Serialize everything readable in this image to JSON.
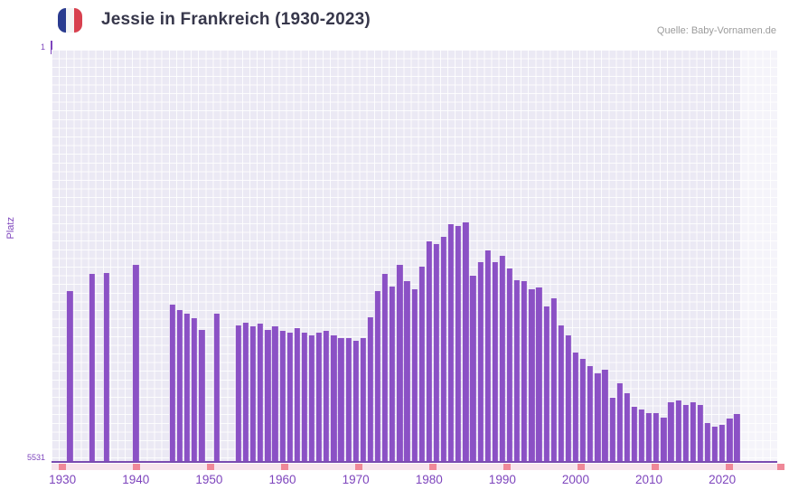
{
  "header": {
    "title": "Jessie in Frankreich (1930-2023)",
    "source": "Quelle: Baby-Vornamen.de"
  },
  "colors": {
    "bar": "#8b51c5",
    "axis_text": "#7e45bd",
    "plot_bg": "#ebe9f4",
    "axis_line": "#7a4cb0",
    "strip_bg": "#f7e4ec",
    "strip_tick": "#ef8898",
    "title_text": "#37374b",
    "source_text": "#9b9b9b",
    "flag_blue": "#2a3b8f",
    "flag_white": "#f5f5f5",
    "flag_red": "#d8414f"
  },
  "chart_data": {
    "type": "bar",
    "title": "Jessie in Frankreich (1930-2023)",
    "xlabel": "",
    "ylabel": "Platz",
    "y_axis": {
      "min": 1,
      "max": 5531,
      "inverted": true,
      "top_label": "1",
      "bottom_label": "5531",
      "note_scale": "rank 1 = best (tallest bar), 5531 = worst"
    },
    "x_domain": [
      1929,
      2027
    ],
    "x_ticks": [
      1930,
      1940,
      1950,
      1960,
      1970,
      1980,
      1990,
      2000,
      2010,
      2020
    ],
    "strip_ticks": [
      1930,
      1940,
      1950,
      1960,
      1970,
      1980,
      1990,
      2000,
      2010,
      2020,
      2030
    ],
    "future_overlay_from": 2023,
    "grid": true,
    "legend": "none",
    "points": [
      [
        1931,
        3250
      ],
      [
        1934,
        3010
      ],
      [
        1936,
        3000
      ],
      [
        1940,
        2890
      ],
      [
        1945,
        3430
      ],
      [
        1946,
        3500
      ],
      [
        1947,
        3550
      ],
      [
        1948,
        3610
      ],
      [
        1949,
        3770
      ],
      [
        1951,
        3550
      ],
      [
        1954,
        3710
      ],
      [
        1955,
        3670
      ],
      [
        1956,
        3720
      ],
      [
        1957,
        3680
      ],
      [
        1958,
        3770
      ],
      [
        1959,
        3720
      ],
      [
        1960,
        3780
      ],
      [
        1961,
        3800
      ],
      [
        1962,
        3740
      ],
      [
        1963,
        3800
      ],
      [
        1964,
        3840
      ],
      [
        1965,
        3800
      ],
      [
        1966,
        3780
      ],
      [
        1967,
        3840
      ],
      [
        1968,
        3880
      ],
      [
        1969,
        3880
      ],
      [
        1970,
        3910
      ],
      [
        1971,
        3880
      ],
      [
        1972,
        3600
      ],
      [
        1973,
        3250
      ],
      [
        1974,
        3010
      ],
      [
        1975,
        3190
      ],
      [
        1976,
        2890
      ],
      [
        1977,
        3110
      ],
      [
        1978,
        3220
      ],
      [
        1979,
        2920
      ],
      [
        1980,
        2580
      ],
      [
        1981,
        2610
      ],
      [
        1982,
        2520
      ],
      [
        1983,
        2350
      ],
      [
        1984,
        2370
      ],
      [
        1985,
        2320
      ],
      [
        1986,
        3040
      ],
      [
        1987,
        2860
      ],
      [
        1988,
        2700
      ],
      [
        1989,
        2860
      ],
      [
        1990,
        2770
      ],
      [
        1991,
        2940
      ],
      [
        1992,
        3100
      ],
      [
        1993,
        3110
      ],
      [
        1994,
        3220
      ],
      [
        1995,
        3200
      ],
      [
        1996,
        3450
      ],
      [
        1997,
        3340
      ],
      [
        1998,
        3710
      ],
      [
        1999,
        3840
      ],
      [
        2000,
        4070
      ],
      [
        2001,
        4160
      ],
      [
        2002,
        4250
      ],
      [
        2003,
        4350
      ],
      [
        2004,
        4300
      ],
      [
        2005,
        4680
      ],
      [
        2006,
        4490
      ],
      [
        2007,
        4620
      ],
      [
        2008,
        4800
      ],
      [
        2009,
        4840
      ],
      [
        2010,
        4890
      ],
      [
        2011,
        4890
      ],
      [
        2012,
        4950
      ],
      [
        2013,
        4740
      ],
      [
        2014,
        4720
      ],
      [
        2015,
        4780
      ],
      [
        2016,
        4740
      ],
      [
        2017,
        4780
      ],
      [
        2018,
        5020
      ],
      [
        2019,
        5070
      ],
      [
        2020,
        5050
      ],
      [
        2021,
        4960
      ],
      [
        2022,
        4900
      ]
    ]
  }
}
